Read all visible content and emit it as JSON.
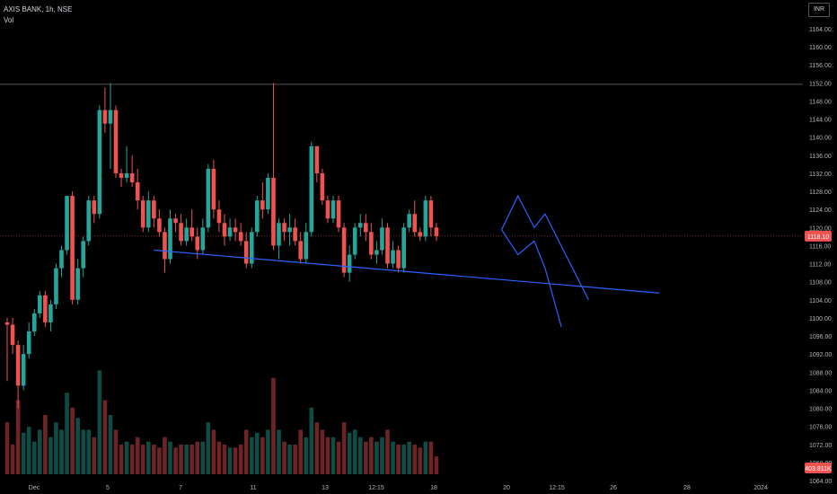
{
  "header": {
    "symbol_line": "AXIS BANK, 1h, NSE",
    "volume_label": "Vol",
    "currency": "INR"
  },
  "price_badge": "1118.10",
  "volume_badge": "403.811K",
  "colors": {
    "up": "#26a69a",
    "down": "#ef5350",
    "drawing": "#2962ff",
    "badge": "#ef5350",
    "background": "#000000"
  },
  "chart_data": {
    "type": "candlestick",
    "y_ticks": [
      "1164.00",
      "1160.00",
      "1156.00",
      "1152.00",
      "1148.00",
      "1144.00",
      "1140.00",
      "1136.00",
      "1132.00",
      "1128.00",
      "1124.00",
      "1120.00",
      "1116.00",
      "1112.00",
      "1108.00",
      "1104.00",
      "1100.00",
      "1096.00",
      "1092.00",
      "1088.00",
      "1084.00",
      "1080.00",
      "1076.00",
      "1072.00",
      "1068.00",
      "1064.00"
    ],
    "x_ticks": [
      "Dec",
      "5",
      "7",
      "11",
      "13",
      "12:15",
      "18",
      "20",
      "12:15",
      "26",
      "28",
      "2024"
    ],
    "ylim": [
      1060,
      1168
    ],
    "last_price": 1118.1,
    "reference_line_price": 1151.7,
    "candles": [
      [
        1099,
        1098.5,
        1086,
        1100,
        0.35
      ],
      [
        1098.5,
        1094,
        1092,
        1100,
        0.2
      ],
      [
        1094,
        1085,
        1080,
        1095,
        0.5
      ],
      [
        1085,
        1092,
        1084,
        1094,
        0.28
      ],
      [
        1092,
        1097,
        1091,
        1099,
        0.32
      ],
      [
        1097,
        1101,
        1096,
        1102,
        0.22
      ],
      [
        1101,
        1105,
        1100,
        1106,
        0.3
      ],
      [
        1105,
        1099,
        1098,
        1106,
        0.4
      ],
      [
        1099,
        1103,
        1097,
        1104,
        0.25
      ],
      [
        1103,
        1111,
        1102,
        1112,
        0.35
      ],
      [
        1111,
        1115,
        1109,
        1116,
        0.3
      ],
      [
        1115,
        1127,
        1114,
        1127,
        0.55
      ],
      [
        1127,
        1104,
        1103,
        1128,
        0.45
      ],
      [
        1104,
        1111,
        1103,
        1113,
        0.38
      ],
      [
        1111,
        1117,
        1109,
        1118,
        0.3
      ],
      [
        1117,
        1126,
        1116,
        1127,
        0.3
      ],
      [
        1126,
        1123,
        1121,
        1127,
        0.25
      ],
      [
        1123,
        1146,
        1122,
        1147,
        0.7
      ],
      [
        1146,
        1143,
        1141,
        1151,
        0.5
      ],
      [
        1143,
        1146,
        1133,
        1152,
        0.4
      ],
      [
        1146,
        1132,
        1131,
        1147,
        0.3
      ],
      [
        1132,
        1131,
        1129,
        1133,
        0.2
      ],
      [
        1131,
        1132,
        1130,
        1138,
        0.22
      ],
      [
        1132,
        1130,
        1129,
        1136,
        0.2
      ],
      [
        1130,
        1126,
        1124,
        1133,
        0.25
      ],
      [
        1126,
        1120,
        1119,
        1127,
        0.2
      ],
      [
        1120,
        1126,
        1119,
        1128,
        0.22
      ],
      [
        1126,
        1122,
        1120,
        1127,
        0.2
      ],
      [
        1122,
        1119,
        1118,
        1124,
        0.18
      ],
      [
        1119,
        1113,
        1110,
        1120,
        0.25
      ],
      [
        1113,
        1122,
        1112,
        1124,
        0.22
      ],
      [
        1122,
        1121,
        1119,
        1123,
        0.18
      ],
      [
        1121,
        1117,
        1116,
        1123,
        0.2
      ],
      [
        1117,
        1120,
        1116,
        1122,
        0.2
      ],
      [
        1120,
        1118,
        1117,
        1124,
        0.2
      ],
      [
        1118,
        1115,
        1113,
        1120,
        0.22
      ],
      [
        1115,
        1120,
        1114,
        1122,
        0.22
      ],
      [
        1120,
        1133,
        1119,
        1134,
        0.35
      ],
      [
        1133,
        1124,
        1122,
        1135,
        0.3
      ],
      [
        1124,
        1121,
        1119,
        1126,
        0.22
      ],
      [
        1121,
        1118,
        1116,
        1123,
        0.2
      ],
      [
        1118,
        1120,
        1117,
        1122,
        0.18
      ],
      [
        1120,
        1119,
        1117,
        1122,
        0.18
      ],
      [
        1119,
        1117,
        1116,
        1121,
        0.2
      ],
      [
        1117,
        1112,
        1111,
        1119,
        0.3
      ],
      [
        1112,
        1119,
        1111,
        1120,
        0.25
      ],
      [
        1119,
        1126,
        1118,
        1127,
        0.28
      ],
      [
        1126,
        1124,
        1122,
        1130,
        0.25
      ],
      [
        1124,
        1131,
        1123,
        1132,
        0.3
      ],
      [
        1131,
        1116,
        1115,
        1152,
        0.65
      ],
      [
        1116,
        1121,
        1113,
        1122,
        0.3
      ],
      [
        1121,
        1119,
        1117,
        1122,
        0.22
      ],
      [
        1119,
        1120,
        1116,
        1123,
        0.2
      ],
      [
        1120,
        1117,
        1116,
        1122,
        0.2
      ],
      [
        1117,
        1113,
        1112,
        1119,
        0.3
      ],
      [
        1113,
        1119,
        1112,
        1121,
        0.25
      ],
      [
        1119,
        1138,
        1118,
        1139,
        0.45
      ],
      [
        1138,
        1132,
        1130,
        1138,
        0.35
      ],
      [
        1132,
        1126,
        1125,
        1133,
        0.3
      ],
      [
        1126,
        1122,
        1121,
        1127,
        0.25
      ],
      [
        1122,
        1126,
        1121,
        1127,
        0.25
      ],
      [
        1126,
        1120,
        1119,
        1127,
        0.22
      ],
      [
        1120,
        1110,
        1109,
        1121,
        0.35
      ],
      [
        1110,
        1114,
        1108,
        1116,
        0.28
      ],
      [
        1114,
        1120,
        1113,
        1121,
        0.3
      ],
      [
        1120,
        1121,
        1118,
        1123,
        0.25
      ],
      [
        1121,
        1119,
        1117,
        1123,
        0.22
      ],
      [
        1119,
        1114,
        1113,
        1121,
        0.25
      ],
      [
        1114,
        1115,
        1112,
        1117,
        0.22
      ],
      [
        1115,
        1120,
        1114,
        1122,
        0.25
      ],
      [
        1120,
        1112,
        1111,
        1121,
        0.3
      ],
      [
        1112,
        1115,
        1111,
        1117,
        0.22
      ],
      [
        1115,
        1111,
        1110,
        1116,
        0.2
      ],
      [
        1111,
        1120,
        1110,
        1121,
        0.2
      ],
      [
        1120,
        1123,
        1119,
        1124,
        0.22
      ],
      [
        1123,
        1119,
        1118,
        1126,
        0.2
      ],
      [
        1119,
        1118,
        1117,
        1120,
        0.18
      ],
      [
        1118,
        1126,
        1117,
        1127,
        0.22
      ],
      [
        1126,
        1120,
        1118,
        1127,
        0.22
      ],
      [
        1120,
        1118.1,
        1117,
        1121,
        0.12
      ]
    ],
    "drawings": {
      "trendline": [
        [
          27,
          1115
        ],
        [
          120,
          1105.5
        ]
      ],
      "projection_upper": [
        [
          91,
          1119.5
        ],
        [
          94,
          1127
        ],
        [
          97,
          1120
        ],
        [
          99,
          1123
        ],
        [
          107,
          1104
        ]
      ],
      "projection_lower": [
        [
          91,
          1119.5
        ],
        [
          94,
          1114
        ],
        [
          97,
          1117
        ],
        [
          99,
          1111
        ],
        [
          102,
          1098
        ]
      ]
    }
  }
}
